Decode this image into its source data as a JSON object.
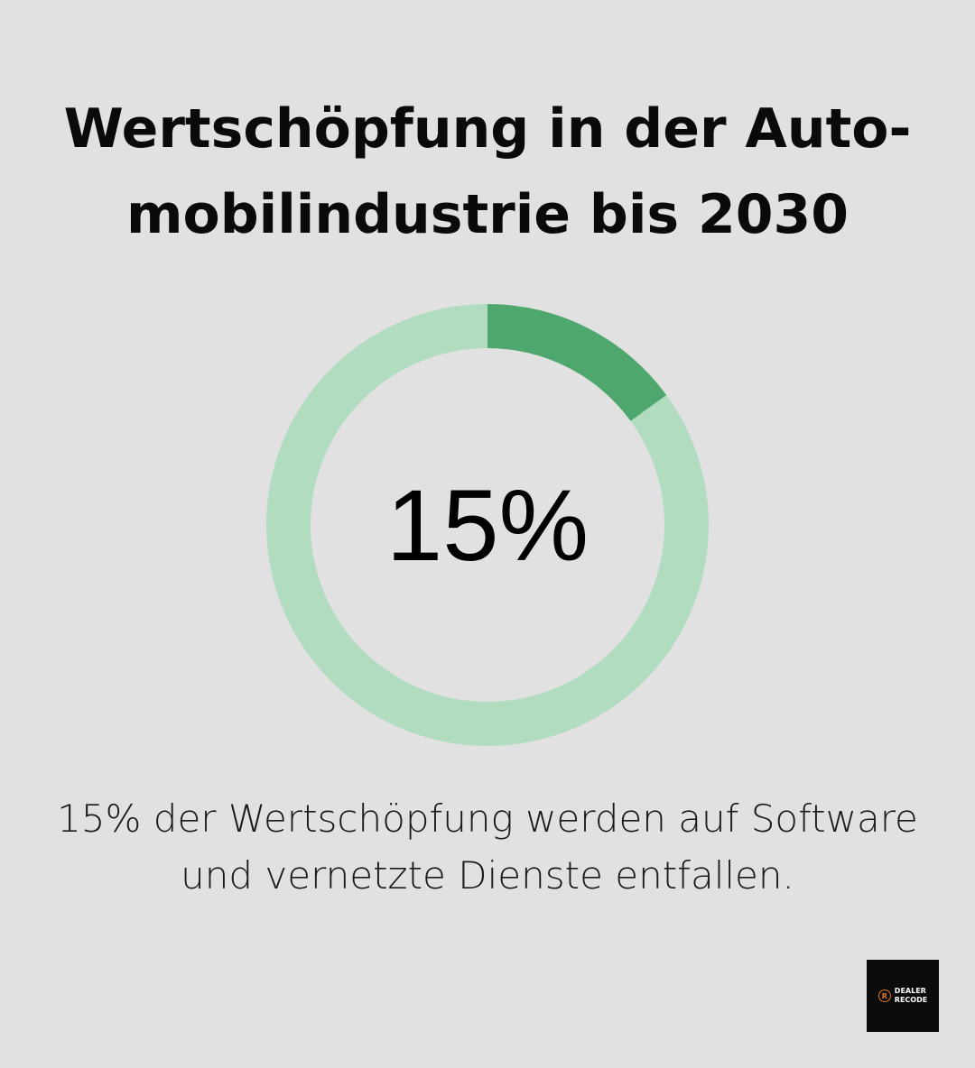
{
  "title": {
    "line1": "Wertschöpfung in der Auto-",
    "line2": "mobilindustrie bis 2030"
  },
  "chart_data": {
    "type": "pie",
    "variant": "donut",
    "values": [
      15,
      85
    ],
    "center_label": "15%",
    "colors": {
      "highlight": "#4ea86d",
      "remainder": "#b1dcc0"
    }
  },
  "caption": {
    "line1": "15% der Wertschöpfung werden auf Software",
    "line2": "und vernetzte Dienste entfallen."
  },
  "logo": {
    "mark": "R",
    "line1": "DEALER",
    "line2": "RECODE",
    "accent": "#e07a1f"
  }
}
